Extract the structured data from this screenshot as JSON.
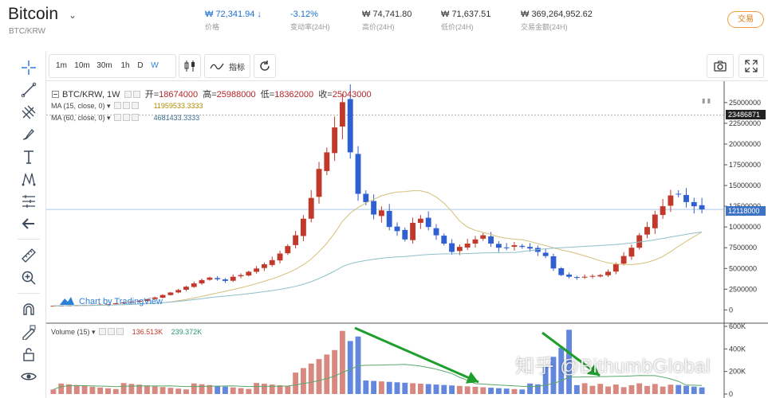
{
  "header": {
    "coin_name": "Bitcoin",
    "pair": "BTC/KRW",
    "stats": [
      {
        "value": "₩ 72,341.94 ↓",
        "label": "价格",
        "color": "blue"
      },
      {
        "value": "-3.12%",
        "label": "变动率(24H)",
        "color": "blue"
      },
      {
        "value": "₩ 74,741.80",
        "label": "高价(24H)",
        "color": "normal"
      },
      {
        "value": "₩ 71,637.51",
        "label": "低价(24H)",
        "color": "normal"
      },
      {
        "value": "₩ 369,264,952.62",
        "label": "交易金额(24H)",
        "color": "normal"
      }
    ],
    "trade_button": "交易"
  },
  "toolbar": {
    "timeframes": [
      "1m",
      "10m",
      "30m",
      "1h",
      "D",
      "W"
    ],
    "active_timeframe": "W",
    "indicators_label": "指标"
  },
  "left_tools": [
    "crosshair-icon",
    "trend-line-icon",
    "fib-icon",
    "brush-icon",
    "text-icon",
    "pattern-icon",
    "measure-icon",
    "back-arrow-icon",
    "ruler-icon",
    "zoom-in-icon",
    "magnet-icon",
    "lock-edit-icon",
    "unlock-icon",
    "eye-icon"
  ],
  "legend": {
    "symbol": "BTC/KRW, 1W",
    "open_label": "开=",
    "open": "18674000",
    "high_label": "高=",
    "high": "25988000",
    "low_label": "低=",
    "low": "18362000",
    "close_label": "收=",
    "close": "25043000",
    "ma15_label": "MA (15, close, 0)",
    "ma15_value": "11959533.3333",
    "ma60_label": "MA (60, close, 0)",
    "ma60_value": "4681433.3333",
    "volume_label": "Volume (15)",
    "vol_red": "136.513K",
    "vol_green": "239.372K"
  },
  "price_tags": {
    "last": "12118000",
    "high": "23486871"
  },
  "attribution": "Chart by TradingView",
  "watermark": "知乎 @BithumbGlobal",
  "colors": {
    "up": "#c0392b",
    "down": "#2f5fd0",
    "ma15": "#d4c07a",
    "ma60": "#8fbfca",
    "accent": "#2a7fd8",
    "arrow": "#1f9e2c"
  },
  "chart_data": {
    "type": "candlestick",
    "price_axis": {
      "ticks": [
        0,
        2500000,
        5000000,
        7500000,
        10000000,
        12500000,
        15000000,
        17500000,
        20000000,
        22500000,
        25000000
      ],
      "tick_labels": [
        "0",
        "2500000",
        "5000000",
        "7500000",
        "10000000",
        "12500000",
        "15000000",
        "17500000",
        "20000000",
        "22500000",
        "25000000"
      ]
    },
    "volume_axis": {
      "tick_labels": [
        "0",
        "200K",
        "400K",
        "600K"
      ]
    },
    "weekly_close_approx": [
      500000,
      520000,
      540000,
      560000,
      600000,
      620000,
      660000,
      700000,
      800000,
      900000,
      1000000,
      1100000,
      1300000,
      1500000,
      1800000,
      2100000,
      2400000,
      2800000,
      3200000,
      3600000,
      3900000,
      3700000,
      3500000,
      4000000,
      4200000,
      4600000,
      5000000,
      5500000,
      6000000,
      6800000,
      7700000,
      9000000,
      11000000,
      13500000,
      17000000,
      19000000,
      22000000,
      25043000,
      19000000,
      14000000,
      13000000,
      11500000,
      12000000,
      10000000,
      9500000,
      8500000,
      10500000,
      11000000,
      10000000,
      9000000,
      8000000,
      7000000,
      7600000,
      8000000,
      8500000,
      9000000,
      8000000,
      7500000,
      7500000,
      7800000,
      7600000,
      7400000,
      7000000,
      6500000,
      5000000,
      4200000,
      4000000,
      3900000,
      4000000,
      4100000,
      4200000,
      4600000,
      5500000,
      6500000,
      7500000,
      9000000,
      10000000,
      11500000,
      12500000,
      13800000,
      14000000,
      13000000,
      12500000,
      12118000
    ],
    "ma15_label": "MA (15, close, 0)",
    "ma60_label": "MA (60, close, 0)"
  }
}
